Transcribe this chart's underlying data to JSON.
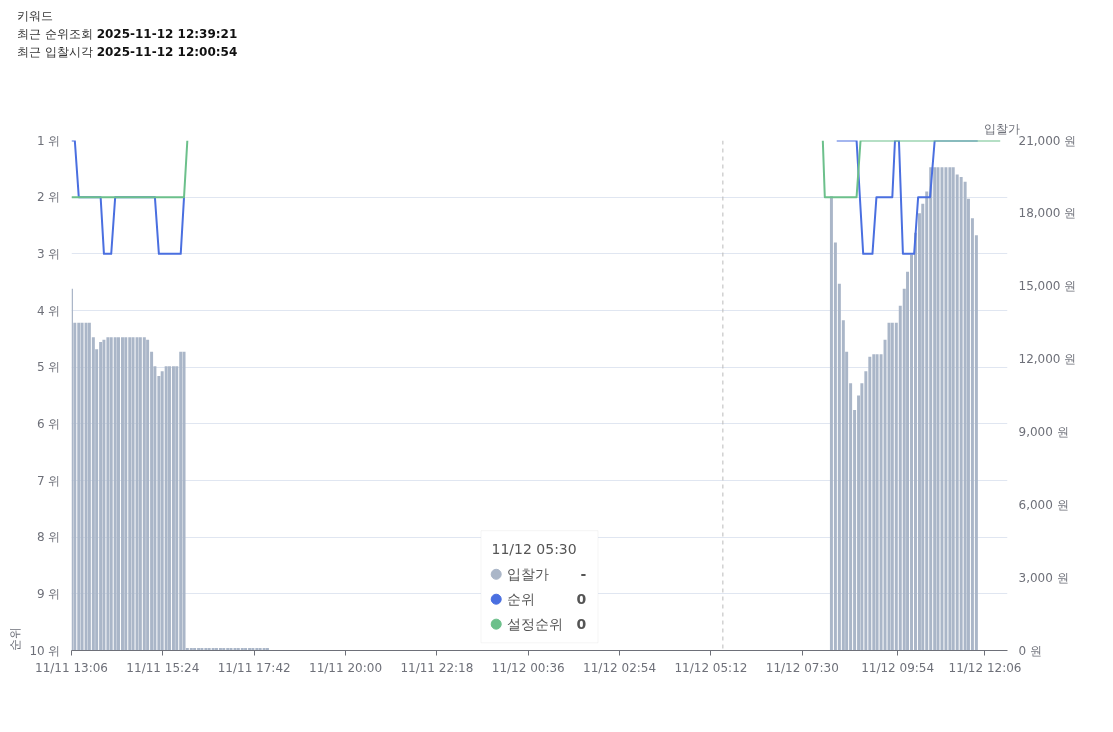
{
  "chart_data": {
    "type": "bar",
    "title": "키워드",
    "subtitle": "최근 순위조회 2025-11-12 12:39:21\n최근 입찰시각 2025-11-12 12:00:54",
    "ylabel": "순위",
    "y2label": "입찰가",
    "legend_title": "11/12 05:30",
    "annotations": [
      "-",
      "0",
      "0"
    ],
    "xlim": [
      "2025-11-11T13:06",
      "2025-11-12T12:40"
    ],
    "xticks": [
      {
        "value": "2025-11-11T13:06",
        "label": "11/11 13:06"
      },
      {
        "value": "2025-11-11T15:24",
        "label": "11/11 15:24"
      },
      {
        "value": "2025-11-11T17:42",
        "label": "11/11 17:42"
      },
      {
        "value": "2025-11-11T20:00",
        "label": "11/11 20:00"
      },
      {
        "value": "2025-11-11T22:18",
        "label": "11/11 22:18"
      },
      {
        "value": "2025-11-12T00:36",
        "label": "11/12 00:36"
      },
      {
        "value": "2025-11-12T02:54",
        "label": "11/12 02:54"
      },
      {
        "value": "2025-11-12T05:12",
        "label": "11/12 05:12"
      },
      {
        "value": "2025-11-12T07:30",
        "label": "11/12 07:30"
      },
      {
        "value": "2025-11-12T09:54",
        "label": "11/12 09:54"
      },
      {
        "value": "2025-11-12T12:06",
        "label": "11/12 12:06"
      }
    ],
    "ylim": [
      10,
      1
    ],
    "yticks": [
      {
        "value": 1,
        "label": "1 위"
      },
      {
        "value": 2,
        "label": "2 위"
      },
      {
        "value": 3,
        "label": "3 위"
      },
      {
        "value": 4,
        "label": "4 위"
      },
      {
        "value": 5,
        "label": "5 위"
      },
      {
        "value": 6,
        "label": "6 위"
      },
      {
        "value": 7,
        "label": "7 위"
      },
      {
        "value": 8,
        "label": "8 위"
      },
      {
        "value": 9,
        "label": "9 위"
      },
      {
        "value": 10,
        "label": "10 위"
      }
    ],
    "y2lim": [
      0,
      21000
    ],
    "y2ticks": [
      {
        "value": 0,
        "label": "0 원"
      },
      {
        "value": 3000,
        "label": "3,000 원"
      },
      {
        "value": 6000,
        "label": "6,000 원"
      },
      {
        "value": 9000,
        "label": "9,000 원"
      },
      {
        "value": 12000,
        "label": "12,000 원"
      },
      {
        "value": 15000,
        "label": "15,000 원"
      },
      {
        "value": 18000,
        "label": "18,000 원"
      },
      {
        "value": 21000,
        "label": "21,000 원"
      }
    ],
    "grid": "y",
    "legend": "bottom",
    "line_style": "solid",
    "ref_lines": [
      {
        "axis": "x",
        "value": "2025-11-12T05:30",
        "label": null,
        "color": "#bbbbbb",
        "line_style": "dashed"
      }
    ],
    "series": [
      {
        "name": "입찰가",
        "axis": "y2",
        "color": "#aab6c8",
        "x": [
          "2025-11-11T13:06",
          "2025-11-11T13:11",
          "2025-11-11T13:17",
          "2025-11-11T13:22",
          "2025-11-11T13:28",
          "2025-11-11T13:33",
          "2025-11-11T13:39",
          "2025-11-11T13:44",
          "2025-11-11T13:50",
          "2025-11-11T13:55",
          "2025-11-11T14:01",
          "2025-11-11T14:06",
          "2025-11-11T14:12",
          "2025-11-11T14:17",
          "2025-11-11T14:23",
          "2025-11-11T14:28",
          "2025-11-11T14:34",
          "2025-11-11T14:39",
          "2025-11-11T14:45",
          "2025-11-11T14:50",
          "2025-11-11T14:56",
          "2025-11-11T15:01",
          "2025-11-11T15:07",
          "2025-11-11T15:12",
          "2025-11-11T15:18",
          "2025-11-11T15:23",
          "2025-11-11T15:29",
          "2025-11-11T15:34",
          "2025-11-11T15:40",
          "2025-11-11T15:45",
          "2025-11-11T15:51",
          "2025-11-11T15:56",
          "2025-11-11T16:01",
          "2025-11-11T16:07",
          "2025-11-11T16:12",
          "2025-11-11T16:18",
          "2025-11-11T16:23",
          "2025-11-11T16:29",
          "2025-11-11T16:34",
          "2025-11-11T16:40",
          "2025-11-11T16:45",
          "2025-11-11T16:51",
          "2025-11-11T16:56",
          "2025-11-11T17:02",
          "2025-11-11T17:07",
          "2025-11-11T17:13",
          "2025-11-11T17:18",
          "2025-11-11T17:24",
          "2025-11-11T17:29",
          "2025-11-11T17:35",
          "2025-11-11T17:40",
          "2025-11-11T17:46",
          "2025-11-11T17:51",
          "2025-11-11T17:57",
          "2025-11-11T18:02",
          "2025-11-12T08:14",
          "2025-11-12T08:20",
          "2025-11-12T08:26",
          "2025-11-12T08:32",
          "2025-11-12T08:37",
          "2025-11-12T08:43",
          "2025-11-12T08:49",
          "2025-11-12T08:55",
          "2025-11-12T09:00",
          "2025-11-12T09:06",
          "2025-11-12T09:12",
          "2025-11-12T09:18",
          "2025-11-12T09:23",
          "2025-11-12T09:29",
          "2025-11-12T09:35",
          "2025-11-12T09:41",
          "2025-11-12T09:46",
          "2025-11-12T09:52",
          "2025-11-12T09:58",
          "2025-11-12T10:04",
          "2025-11-12T10:09",
          "2025-11-12T10:15",
          "2025-11-12T10:21",
          "2025-11-12T10:27",
          "2025-11-12T10:32",
          "2025-11-12T10:38",
          "2025-11-12T10:44",
          "2025-11-12T10:50",
          "2025-11-12T10:55",
          "2025-11-12T11:01",
          "2025-11-12T11:07",
          "2025-11-12T11:13",
          "2025-11-12T11:18",
          "2025-11-12T11:24",
          "2025-11-12T11:30",
          "2025-11-12T11:36",
          "2025-11-12T11:41",
          "2025-11-12T11:47",
          "2025-11-12T11:53"
        ],
        "values": [
          14900,
          13500,
          13500,
          13500,
          13500,
          13500,
          12900,
          12400,
          12700,
          12800,
          12900,
          12900,
          12900,
          12900,
          12900,
          12900,
          12900,
          12900,
          12900,
          12900,
          12900,
          12800,
          12300,
          11700,
          11300,
          11500,
          11700,
          11700,
          11700,
          11700,
          12300,
          12300,
          100,
          100,
          100,
          100,
          100,
          100,
          100,
          100,
          100,
          100,
          100,
          100,
          100,
          100,
          100,
          100,
          100,
          100,
          100,
          100,
          100,
          100,
          100,
          18700,
          16800,
          15100,
          13600,
          12300,
          11000,
          9900,
          10500,
          11000,
          11500,
          12100,
          12200,
          12200,
          12200,
          12800,
          13500,
          13500,
          13500,
          14200,
          14900,
          15600,
          16300,
          17200,
          18000,
          18400,
          18900,
          19900,
          19900,
          19900,
          19900,
          19900,
          19900,
          19900,
          19600,
          19500,
          19300,
          18600,
          17800,
          17100
        ]
      },
      {
        "name": "순위",
        "type": "line",
        "color": "#4a6fe0",
        "x": [
          "2025-11-11T13:06",
          "2025-11-11T13:11",
          "2025-11-11T13:17",
          "2025-11-11T13:50",
          "2025-11-11T13:55",
          "2025-11-11T14:06",
          "2025-11-11T14:12",
          "2025-11-11T15:12",
          "2025-11-11T15:18",
          "2025-11-11T15:51",
          "2025-11-11T15:56",
          "2025-11-12T00:00",
          "2025-11-12T08:22",
          "2025-11-12T08:52",
          "2025-11-12T09:02",
          "2025-11-12T09:16",
          "2025-11-12T09:22",
          "2025-11-12T09:46",
          "2025-11-12T09:50",
          "2025-11-12T09:56",
          "2025-11-12T10:02",
          "2025-11-12T10:19",
          "2025-11-12T10:25",
          "2025-11-12T10:43",
          "2025-11-12T10:50",
          "2025-11-12T11:55"
        ],
        "values": [
          1,
          1,
          2,
          2,
          3,
          3,
          2,
          2,
          3,
          3,
          2,
          null,
          1,
          1,
          3,
          3,
          2,
          2,
          1,
          1,
          3,
          3,
          2,
          2,
          1,
          1
        ]
      },
      {
        "name": "설정순위",
        "type": "line",
        "color": "#6cc08b",
        "x": [
          "2025-11-11T13:06",
          "2025-11-11T15:56",
          "2025-11-11T16:01",
          "2025-11-12T00:00",
          "2025-11-12T08:01",
          "2025-11-12T08:04",
          "2025-11-12T08:52",
          "2025-11-12T08:58",
          "2025-11-12T12:29"
        ],
        "values": [
          2,
          2,
          1,
          null,
          1,
          2,
          2,
          1,
          1
        ]
      }
    ]
  }
}
